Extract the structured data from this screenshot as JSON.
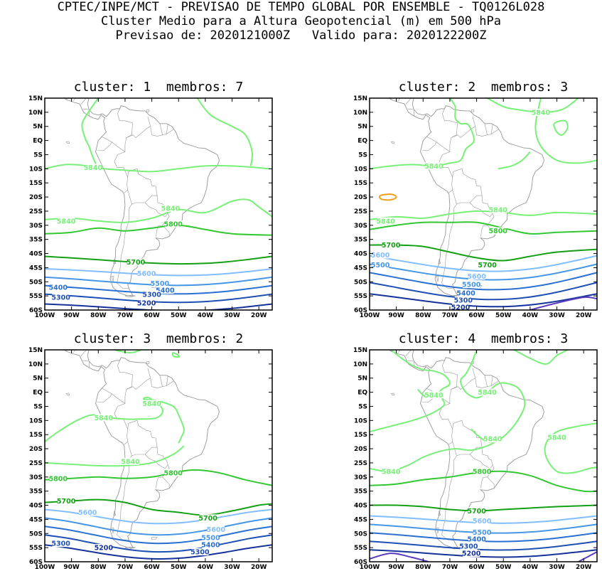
{
  "header": {
    "line1": "CPTEC/INPE/MCT - PREVISAO DE TEMPO GLOBAL POR ENSEMBLE - TQ0126L028",
    "line2": "Cluster Medio para a Altura Geopotencial (m) em 500 hPa",
    "line3": "Previsao de: 2020121000Z   Valido para: 2020122200Z"
  },
  "axes": {
    "lat_labels": [
      "15N",
      "10N",
      "5N",
      "EQ",
      "5S",
      "10S",
      "15S",
      "20S",
      "25S",
      "30S",
      "35S",
      "40S",
      "45S",
      "50S",
      "55S",
      "60S"
    ],
    "lon_labels": [
      "100W",
      "90W",
      "80W",
      "70W",
      "60W",
      "50W",
      "40W",
      "30W",
      "20W"
    ]
  },
  "colors": {
    "5840": "#78f078",
    "5800": "#32c832",
    "5700": "#14a014",
    "5600": "#82beff",
    "5500": "#4696e6",
    "5400": "#2870d2",
    "5300": "#1e50b4",
    "5200": "#14329a",
    "5100": "#5a3cbe",
    "5900": "#f0a014",
    "coast": "#969696"
  },
  "panels": [
    {
      "title": "cluster: 1  membros: 7",
      "labels": [
        {
          "v": "5840",
          "lon": -82,
          "lat": -9.5
        },
        {
          "v": "5840",
          "lon": -53,
          "lat": -24
        },
        {
          "v": "5840",
          "lon": -92,
          "lat": -28.5
        },
        {
          "v": "5800",
          "lon": -52,
          "lat": -29.5
        },
        {
          "v": "5700",
          "lon": -66,
          "lat": -43
        },
        {
          "v": "5600",
          "lon": -62,
          "lat": -47
        },
        {
          "v": "5500",
          "lon": -57,
          "lat": -50.5
        },
        {
          "v": "5400",
          "lon": -55,
          "lat": -53
        },
        {
          "v": "5400",
          "lon": -95,
          "lat": -52
        },
        {
          "v": "5300",
          "lon": -60,
          "lat": -54.5
        },
        {
          "v": "5300",
          "lon": -94,
          "lat": -55.5
        },
        {
          "v": "5200",
          "lon": -62,
          "lat": -57.5
        }
      ]
    },
    {
      "title": "cluster: 2  membros: 3",
      "labels": [
        {
          "v": "5840",
          "lon": -36,
          "lat": 10
        },
        {
          "v": "5840",
          "lon": -76,
          "lat": -9
        },
        {
          "v": "5840",
          "lon": -52,
          "lat": -24.5
        },
        {
          "v": "5840",
          "lon": -94,
          "lat": -28.5
        },
        {
          "v": "5800",
          "lon": -52,
          "lat": -32
        },
        {
          "v": "5700",
          "lon": -92,
          "lat": -37
        },
        {
          "v": "5700",
          "lon": -56,
          "lat": -44
        },
        {
          "v": "5600",
          "lon": -96,
          "lat": -40.5
        },
        {
          "v": "5500",
          "lon": -96,
          "lat": -44
        },
        {
          "v": "5600",
          "lon": -60,
          "lat": -48
        },
        {
          "v": "5500",
          "lon": -62,
          "lat": -51
        },
        {
          "v": "5400",
          "lon": -64,
          "lat": -54
        },
        {
          "v": "5300",
          "lon": -65,
          "lat": -56.5
        },
        {
          "v": "5200",
          "lon": -66,
          "lat": -59
        }
      ]
    },
    {
      "title": "cluster: 3  membros: 2",
      "labels": [
        {
          "v": "5840",
          "lon": -78,
          "lat": -9
        },
        {
          "v": "5840",
          "lon": -60,
          "lat": -4
        },
        {
          "v": "5840",
          "lon": -68,
          "lat": -24.5
        },
        {
          "v": "5800",
          "lon": -95,
          "lat": -30.5
        },
        {
          "v": "5800",
          "lon": -52,
          "lat": -28.5
        },
        {
          "v": "5700",
          "lon": -92,
          "lat": -38.5
        },
        {
          "v": "5700",
          "lon": -39,
          "lat": -44.5
        },
        {
          "v": "5600",
          "lon": -84,
          "lat": -42.5
        },
        {
          "v": "5600",
          "lon": -36,
          "lat": -48.5
        },
        {
          "v": "5500",
          "lon": -38,
          "lat": -51.5
        },
        {
          "v": "5400",
          "lon": -38,
          "lat": -54
        },
        {
          "v": "5300",
          "lon": -94,
          "lat": -53.5
        },
        {
          "v": "5300",
          "lon": -42,
          "lat": -56.5
        },
        {
          "v": "5200",
          "lon": -78,
          "lat": -55
        }
      ]
    },
    {
      "title": "cluster: 4  membros: 3",
      "labels": [
        {
          "v": "5840",
          "lon": -76,
          "lat": -1
        },
        {
          "v": "5840",
          "lon": -56,
          "lat": 0
        },
        {
          "v": "5840",
          "lon": -54,
          "lat": -16.5
        },
        {
          "v": "5840",
          "lon": -30,
          "lat": -16
        },
        {
          "v": "5840",
          "lon": -92,
          "lat": -28
        },
        {
          "v": "5800",
          "lon": -58,
          "lat": -28
        },
        {
          "v": "5700",
          "lon": -60,
          "lat": -42
        },
        {
          "v": "5600",
          "lon": -58,
          "lat": -45.5
        },
        {
          "v": "5500",
          "lon": -58,
          "lat": -49.5
        },
        {
          "v": "5400",
          "lon": -60,
          "lat": -52
        },
        {
          "v": "5300",
          "lon": -63,
          "lat": -54.5
        },
        {
          "v": "5200",
          "lon": -62,
          "lat": -57
        }
      ]
    }
  ]
}
